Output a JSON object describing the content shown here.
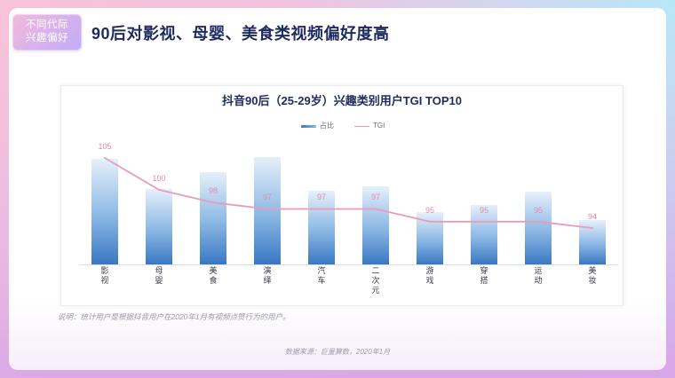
{
  "tag": {
    "line1": "不同代际",
    "line2": "兴趣偏好"
  },
  "page_title": "90后对影视、母婴、美食类视频偏好度高",
  "colors": {
    "title": "#1e2b5e",
    "bar_top": "#e6f0fb",
    "bar_mid": "#8ab7e4",
    "bar_bottom": "#3a77c2",
    "tgi_line": "#e99bb9",
    "tgi_label": "#e48cae"
  },
  "chart_data": {
    "type": "bar",
    "title": "抖音90后（25-29岁）兴趣类别用户TGI TOP10",
    "categories": [
      "影视",
      "母婴",
      "美食",
      "演绎",
      "汽车",
      "二次元",
      "游戏",
      "穿搭",
      "运动",
      "美妆"
    ],
    "series": [
      {
        "name": "占比",
        "type": "bar",
        "values": [
          0.98,
          0.7,
          0.86,
          1.0,
          0.69,
          0.73,
          0.49,
          0.55,
          0.68,
          0.41
        ]
      },
      {
        "name": "TGI",
        "type": "line",
        "values": [
          105,
          100,
          98,
          97,
          97,
          97,
          95,
          95,
          95,
          94
        ]
      }
    ],
    "legend": "top-center",
    "grid": false
  },
  "note": "说明：统计用户是根据抖音用户在2020年1月有视频点赞行为的用户。",
  "source": "数据来源：巨量算数，2020年1月"
}
